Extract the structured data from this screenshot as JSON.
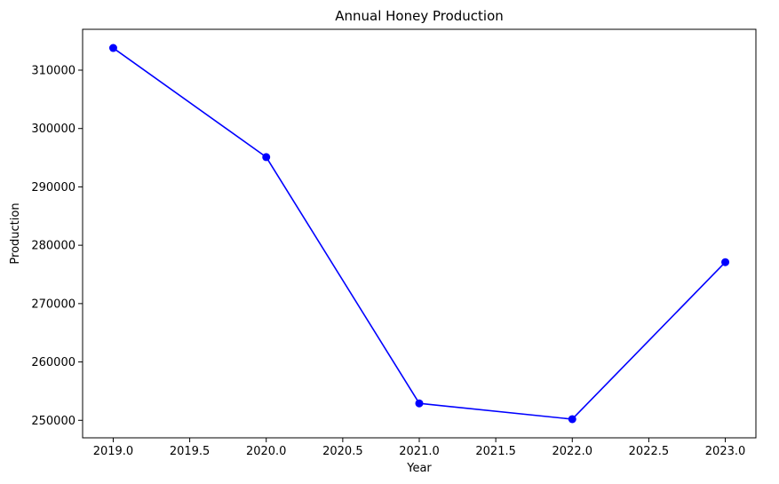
{
  "chart_data": {
    "type": "line",
    "title": "Annual Honey Production",
    "xlabel": "Year",
    "ylabel": "Production",
    "x": [
      2019.0,
      2020.0,
      2021.0,
      2022.0,
      2023.0
    ],
    "series": [
      {
        "values": [
          313800,
          295100,
          252900,
          250200,
          277100
        ],
        "color": "#0000ff",
        "marker": "circle"
      }
    ],
    "xlim": [
      2018.8,
      2023.2
    ],
    "ylim": [
      247000,
      317000
    ],
    "xticks": [
      2019.0,
      2019.5,
      2020.0,
      2020.5,
      2021.0,
      2021.5,
      2022.0,
      2022.5,
      2023.0
    ],
    "xtick_labels": [
      "2019.0",
      "2019.5",
      "2020.0",
      "2020.5",
      "2021.0",
      "2021.5",
      "2022.0",
      "2022.5",
      "2023.0"
    ],
    "yticks": [
      250000,
      260000,
      270000,
      280000,
      290000,
      300000,
      310000
    ],
    "ytick_labels": [
      "250000",
      "260000",
      "270000",
      "280000",
      "290000",
      "300000",
      "310000"
    ],
    "grid": false,
    "legend": "none"
  }
}
